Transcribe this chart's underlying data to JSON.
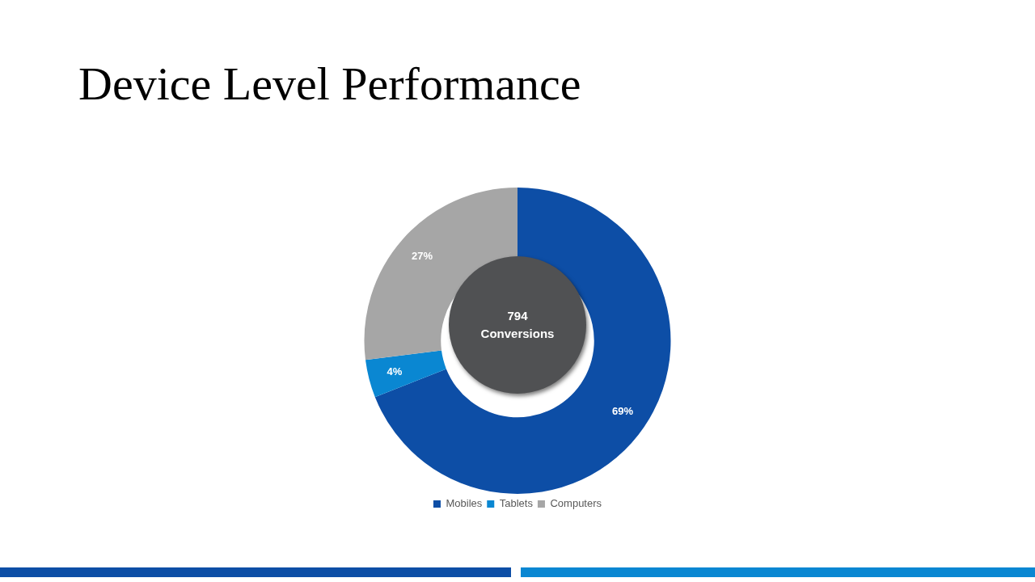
{
  "chart_data": {
    "type": "donut",
    "title": "Device Level Performance",
    "categories": [
      "Mobiles",
      "Tablets",
      "Computers"
    ],
    "values": [
      69,
      4,
      27
    ],
    "colors": [
      "#0d4ea6",
      "#0a87d2",
      "#a6a6a6"
    ],
    "value_labels": [
      "69%",
      "4%",
      "27%"
    ],
    "annotations": [
      "794 Conversions"
    ],
    "legend": "bottom"
  }
}
